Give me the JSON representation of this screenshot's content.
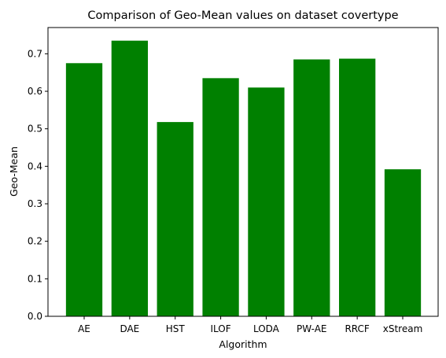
{
  "chart_data": {
    "type": "bar",
    "title": "Comparison of Geo-Mean values on dataset covertype",
    "xlabel": "Algorithm",
    "ylabel": "Geo-Mean",
    "categories": [
      "AE",
      "DAE",
      "HST",
      "ILOF",
      "LODA",
      "PW-AE",
      "RRCF",
      "xStream"
    ],
    "values": [
      0.675,
      0.735,
      0.518,
      0.635,
      0.61,
      0.685,
      0.687,
      0.392
    ],
    "ylim": [
      0,
      0.77
    ],
    "yticks": [
      "0.0",
      "0.1",
      "0.2",
      "0.3",
      "0.4",
      "0.5",
      "0.6",
      "0.7"
    ],
    "bar_color": "#008000",
    "grid": false,
    "legend": "none"
  }
}
